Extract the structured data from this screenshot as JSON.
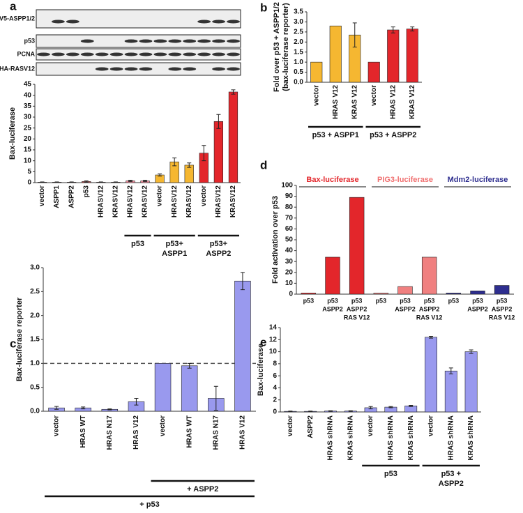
{
  "chart_data": [
    {
      "type": "bar",
      "panel": "a",
      "blot_labels": [
        "V5-ASPP1/2",
        "p53",
        "PCNA",
        "HA-RASV12"
      ],
      "y_label": "Bax-luciferase",
      "categories": [
        "vector",
        "ASPP1",
        "ASPP2",
        "p53",
        "HRASV12",
        "KRASV12",
        "HRASV12",
        "KRASV12",
        "vector",
        "HRASV12",
        "KRASV12",
        "vector",
        "HRASV12",
        "KRASV12"
      ],
      "values": [
        0.2,
        0.2,
        0.2,
        0.5,
        0.2,
        0.2,
        0.8,
        0.8,
        3.5,
        9.5,
        8,
        13.5,
        28,
        41.5
      ],
      "errors": [
        0.1,
        0.1,
        0.1,
        0.3,
        0.1,
        0.1,
        0.3,
        0.3,
        0.5,
        1.8,
        1,
        3.5,
        3.2,
        1
      ],
      "colors": [
        "#d04a4a",
        "#d04a4a",
        "#d04a4a",
        "#d04a4a",
        "#d04a4a",
        "#d04a4a",
        "#f08a9a",
        "#f08a9a",
        "#f5b731",
        "#f5b731",
        "#f5b731",
        "#e3262b",
        "#e3262b",
        "#e3262b"
      ],
      "ylim": [
        0,
        45
      ],
      "yticks": [
        0,
        5,
        10,
        15,
        20,
        25,
        30,
        35,
        40,
        45
      ],
      "groups": [
        {
          "label": [
            "p53"
          ],
          "span": [
            6,
            7
          ]
        },
        {
          "label": [
            "p53+",
            "ASPP1"
          ],
          "span": [
            8,
            10
          ]
        },
        {
          "label": [
            "p53+",
            "ASPP2"
          ],
          "span": [
            11,
            13
          ]
        }
      ]
    },
    {
      "type": "bar",
      "panel": "b",
      "y_label": [
        "Fold over p53 + ASPP1/2",
        "(bax-luciferase reporter)"
      ],
      "categories": [
        "vector",
        "HRAS V12",
        "KRAS V12",
        "vector",
        "HRAS V12",
        "KRAS V12"
      ],
      "values": [
        1,
        2.8,
        2.35,
        1,
        2.6,
        2.65
      ],
      "errors": [
        0,
        0,
        0.6,
        0,
        0.15,
        0.1
      ],
      "colors": [
        "#f5b731",
        "#f5b731",
        "#f5b731",
        "#e3262b",
        "#e3262b",
        "#e3262b"
      ],
      "ylim": [
        0,
        3.5
      ],
      "yticks": [
        {
          "value": 0,
          "label": "0.0"
        },
        {
          "value": 0.5,
          "label": "0.5"
        },
        {
          "value": 1,
          "label": "1.0"
        },
        {
          "value": 1.5,
          "label": "1.5"
        },
        {
          "value": 2,
          "label": "2.0"
        },
        {
          "value": 2.5,
          "label": "2.5"
        },
        {
          "value": 3,
          "label": "3.0"
        },
        {
          "value": 3.5,
          "label": "3.5"
        }
      ],
      "groups": [
        {
          "label": [
            "p53 + ASPP1"
          ],
          "span": [
            0,
            2
          ]
        },
        {
          "label": [
            "p53 + ASPP2"
          ],
          "span": [
            3,
            5
          ]
        }
      ]
    },
    {
      "type": "bar",
      "panel": "d",
      "y_label": "Fold activation over p53",
      "headers": [
        {
          "text": "Bax-luciferase",
          "color": "#e3262b",
          "span": [
            0,
            2
          ]
        },
        {
          "text": "PIG3-luciferase",
          "color": "#f07070",
          "span": [
            3,
            5
          ]
        },
        {
          "text": "Mdm2-luciferase",
          "color": "#2e2e8f",
          "span": [
            6,
            8
          ]
        }
      ],
      "categories": [
        [
          "p53"
        ],
        [
          "p53",
          "ASPP2"
        ],
        [
          "p53",
          "ASPP2",
          "RAS V12"
        ],
        [
          "p53"
        ],
        [
          "p53",
          "ASPP2"
        ],
        [
          "p53",
          "ASPP2",
          "RAS V12"
        ],
        [
          "p53"
        ],
        [
          "p53",
          "ASPP2"
        ],
        [
          "p53",
          "ASPP2",
          "RAS V12"
        ]
      ],
      "values": [
        1,
        34,
        89,
        1,
        7,
        34,
        1,
        3,
        8
      ],
      "colors": [
        "#e3262b",
        "#e3262b",
        "#e3262b",
        "#f08080",
        "#f08080",
        "#f08080",
        "#2e2e8f",
        "#2e2e8f",
        "#2e2e8f"
      ],
      "ylim": [
        0,
        100
      ],
      "yticks": [
        0,
        10,
        20,
        30,
        40,
        50,
        60,
        70,
        80,
        90,
        100
      ]
    },
    {
      "type": "bar",
      "panel": "c",
      "y_label": "Bax-luciferase reporter",
      "categories": [
        "vector",
        "HRAS WT",
        "HRAS N17",
        "HRAS V12",
        "vector",
        "HRAS WT",
        "HRAS N17",
        "HRAS V12"
      ],
      "values": [
        0.07,
        0.07,
        0.04,
        0.2,
        1,
        0.95,
        0.27,
        2.72
      ],
      "errors": [
        0.03,
        0.02,
        0.01,
        0.07,
        0,
        0.05,
        0.25,
        0.18
      ],
      "color": "#9999ee",
      "reference_line": 1,
      "ylim": [
        0,
        3
      ],
      "yticks": [
        {
          "value": 0,
          "label": "0.0"
        },
        {
          "value": 0.5,
          "label": "0.5"
        },
        {
          "value": 1,
          "label": "1.0"
        },
        {
          "value": 1.5,
          "label": "1.5"
        },
        {
          "value": 2,
          "label": "2.0"
        },
        {
          "value": 2.5,
          "label": "2.5"
        },
        {
          "value": 3,
          "label": "3.0"
        }
      ],
      "groups": [
        {
          "label": [
            "+ ASPP2"
          ],
          "span": [
            4,
            7
          ]
        },
        {
          "label": [
            "+ p53"
          ],
          "span": [
            0,
            7
          ]
        }
      ]
    },
    {
      "type": "bar",
      "panel": "e",
      "y_label": "Bax-luciferase",
      "categories": [
        "vector",
        "ASPP2",
        "HRAS shRNA",
        "KRAS shRNA",
        "vector",
        "HRAS shRNA",
        "KRAS shRNA",
        "vector",
        "HRAS shRNA",
        "KRAS shRNA"
      ],
      "values": [
        0.1,
        0.1,
        0.15,
        0.15,
        0.7,
        0.8,
        1,
        12.4,
        6.8,
        10
      ],
      "errors": [
        0.05,
        0.05,
        0.05,
        0.05,
        0.2,
        0.1,
        0.1,
        0.15,
        0.5,
        0.3
      ],
      "color": "#9999ee",
      "ylim": [
        0,
        14
      ],
      "yticks": [
        0,
        2,
        4,
        6,
        8,
        10,
        12,
        14
      ],
      "groups": [
        {
          "label": [
            "p53"
          ],
          "span": [
            4,
            6
          ]
        },
        {
          "label": [
            "p53 +",
            "ASPP2"
          ],
          "span": [
            7,
            9
          ]
        }
      ]
    }
  ]
}
